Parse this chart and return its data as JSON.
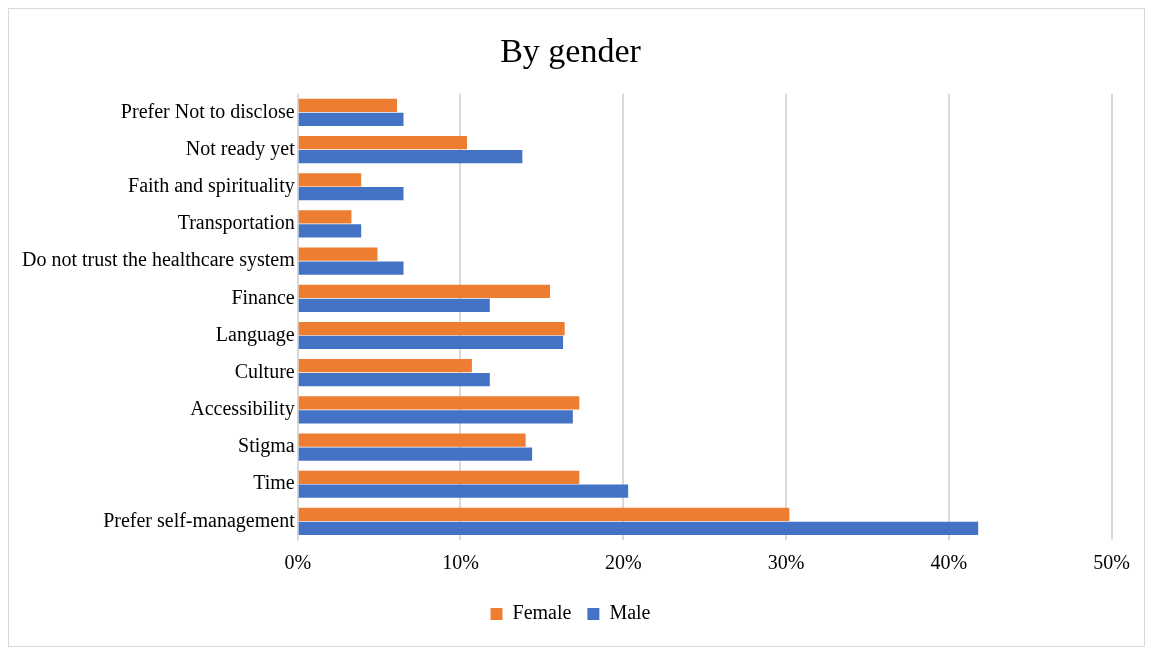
{
  "chart_data": {
    "type": "bar",
    "orientation": "horizontal",
    "title": "By gender",
    "categories": [
      "Prefer Not to disclose",
      "Not ready yet",
      "Faith and spirituality",
      "Transportation",
      "Do not trust the healthcare system",
      "Finance",
      "Language",
      "Culture",
      "Accessibility",
      "Stigma",
      "Time",
      "Prefer self-management"
    ],
    "series": [
      {
        "name": "Female",
        "color": "#ed7d31",
        "values": [
          6.1,
          10.4,
          3.9,
          3.3,
          4.9,
          15.5,
          16.4,
          10.7,
          17.3,
          14.0,
          17.3,
          30.2
        ]
      },
      {
        "name": "Male",
        "color": "#4472c4",
        "values": [
          6.5,
          13.8,
          6.5,
          3.9,
          6.5,
          11.8,
          16.3,
          11.8,
          16.9,
          14.4,
          20.3,
          41.8
        ]
      }
    ],
    "xlim": [
      0,
      50
    ],
    "xticks": [
      {
        "value": 0,
        "label": "0%"
      },
      {
        "value": 10,
        "label": "10%"
      },
      {
        "value": 20,
        "label": "20%"
      },
      {
        "value": 30,
        "label": "30%"
      },
      {
        "value": 40,
        "label": "40%"
      },
      {
        "value": 50,
        "label": "50%"
      }
    ],
    "grid": "x",
    "legend": "bottom"
  }
}
